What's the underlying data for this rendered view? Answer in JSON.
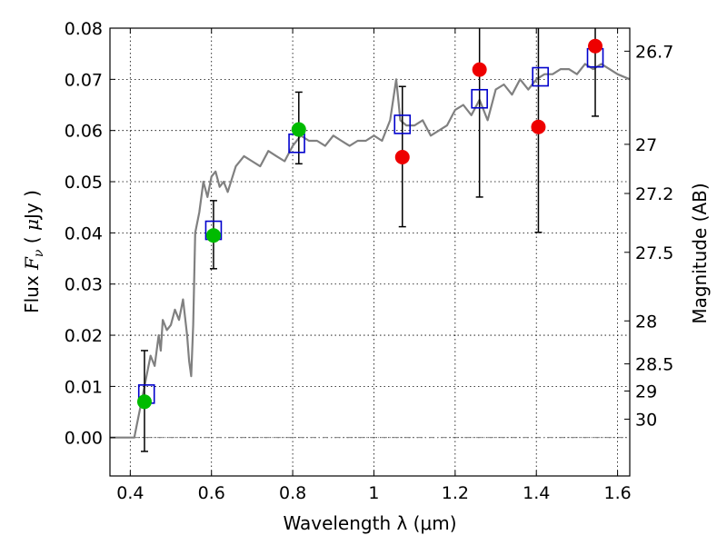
{
  "chart_data": {
    "type": "scatter",
    "xlabel": "Wavelength  λ (μm)",
    "ylabel": "Flux  F_ν  ( μJy )",
    "ylabel_parts": [
      "Flux  ",
      "F",
      "ν",
      "  ( ",
      "μ",
      "Jy )"
    ],
    "y2label": "Magnitude (AB)",
    "xlim": [
      0.35,
      1.63
    ],
    "ylim": [
      -0.0075,
      0.08
    ],
    "grid": true,
    "x_ticks": [
      0.4,
      0.6,
      0.8,
      1.0,
      1.2,
      1.4,
      1.6
    ],
    "x_tick_labels": [
      "0.4",
      "0.6",
      "0.8",
      "1",
      "1.2",
      "1.4",
      "1.6"
    ],
    "y_ticks": [
      0.0,
      0.01,
      0.02,
      0.03,
      0.04,
      0.05,
      0.06,
      0.07,
      0.08
    ],
    "y_tick_labels": [
      "0.00",
      "0.01",
      "0.02",
      "0.03",
      "0.04",
      "0.05",
      "0.06",
      "0.07",
      "0.08"
    ],
    "mag_ticks": [
      {
        "label": "26.7",
        "flux": 0.0755
      },
      {
        "label": "27",
        "flux": 0.0573
      },
      {
        "label": "27.2",
        "flux": 0.0477
      },
      {
        "label": "27.5",
        "flux": 0.0362
      },
      {
        "label": "28",
        "flux": 0.0228
      },
      {
        "label": "28.5",
        "flux": 0.0144
      },
      {
        "label": "29",
        "flux": 0.0091
      },
      {
        "label": "30",
        "flux": 0.0036
      }
    ],
    "colors": {
      "model": "#808080",
      "model_photometry": "#0000cc",
      "detections": "#00bb00",
      "nondetections": "#ee0000",
      "errorbar": "#000000"
    },
    "model_sed": {
      "x": [
        0.35,
        0.41,
        0.415,
        0.43,
        0.44,
        0.45,
        0.46,
        0.47,
        0.475,
        0.48,
        0.49,
        0.5,
        0.51,
        0.52,
        0.53,
        0.54,
        0.545,
        0.55,
        0.555,
        0.56,
        0.57,
        0.58,
        0.59,
        0.6,
        0.61,
        0.62,
        0.63,
        0.64,
        0.66,
        0.68,
        0.7,
        0.72,
        0.74,
        0.76,
        0.78,
        0.8,
        0.82,
        0.84,
        0.86,
        0.88,
        0.9,
        0.92,
        0.94,
        0.96,
        0.98,
        1.0,
        1.02,
        1.04,
        1.055,
        1.06,
        1.065,
        1.08,
        1.1,
        1.12,
        1.14,
        1.16,
        1.18,
        1.2,
        1.22,
        1.24,
        1.26,
        1.28,
        1.3,
        1.32,
        1.34,
        1.36,
        1.38,
        1.4,
        1.42,
        1.44,
        1.46,
        1.48,
        1.5,
        1.52,
        1.54,
        1.56,
        1.58,
        1.6,
        1.63
      ],
      "y": [
        0.0,
        0.0,
        0.002,
        0.008,
        0.012,
        0.016,
        0.014,
        0.02,
        0.017,
        0.023,
        0.021,
        0.022,
        0.025,
        0.023,
        0.027,
        0.02,
        0.015,
        0.012,
        0.022,
        0.04,
        0.044,
        0.05,
        0.047,
        0.051,
        0.052,
        0.049,
        0.05,
        0.048,
        0.053,
        0.055,
        0.054,
        0.053,
        0.056,
        0.055,
        0.054,
        0.057,
        0.059,
        0.058,
        0.058,
        0.057,
        0.059,
        0.058,
        0.057,
        0.058,
        0.058,
        0.059,
        0.058,
        0.062,
        0.07,
        0.066,
        0.062,
        0.061,
        0.061,
        0.062,
        0.059,
        0.06,
        0.061,
        0.064,
        0.065,
        0.063,
        0.066,
        0.062,
        0.068,
        0.069,
        0.067,
        0.07,
        0.068,
        0.07,
        0.071,
        0.071,
        0.072,
        0.072,
        0.071,
        0.073,
        0.072,
        0.073,
        0.072,
        0.071,
        0.07
      ]
    },
    "model_photometry": {
      "x": [
        0.44,
        0.605,
        0.81,
        1.07,
        1.26,
        1.41,
        1.545
      ],
      "y": [
        0.0085,
        0.0405,
        0.0575,
        0.0612,
        0.0662,
        0.0705,
        0.0742
      ]
    },
    "detections": {
      "x": [
        0.435,
        0.605,
        0.815
      ],
      "y": [
        0.007,
        0.0395,
        0.0602
      ],
      "err_lo": [
        0.0097,
        0.0065,
        0.0067
      ],
      "err_hi": [
        0.01,
        0.0068,
        0.0073
      ]
    },
    "nondetections": {
      "x": [
        1.07,
        1.26,
        1.405,
        1.545
      ],
      "y": [
        0.0548,
        0.0719,
        0.0607,
        0.0765
      ],
      "err_lo": [
        0.0136,
        0.0249,
        0.0206,
        0.0137
      ],
      "err_hi": [
        0.0138,
        0.013,
        0.022,
        0.012
      ]
    }
  }
}
